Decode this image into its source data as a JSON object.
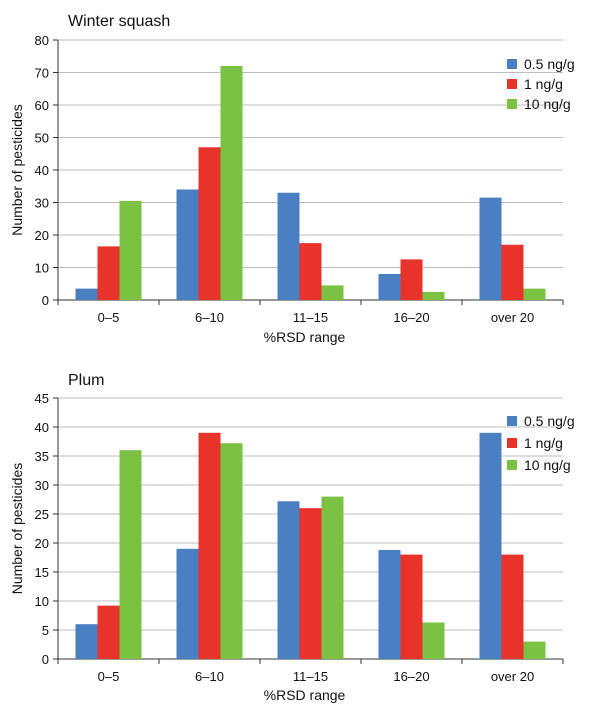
{
  "chart_data": [
    {
      "type": "bar",
      "title": "Winter squash",
      "xlabel": "%RSD range",
      "ylabel": "Number of pesticides",
      "ylim": [
        0,
        80
      ],
      "ytick_step": 10,
      "grid": true,
      "legend": "top-right",
      "categories": [
        "0–5",
        "6–10",
        "11–15",
        "16–20",
        "over 20"
      ],
      "series": [
        {
          "name": "0.5 ng/g",
          "color": "#4a7fc1",
          "values": [
            3.5,
            34,
            33,
            8,
            31.5
          ]
        },
        {
          "name": "1 ng/g",
          "color": "#e8332a",
          "values": [
            16.5,
            47,
            17.5,
            12.5,
            17
          ]
        },
        {
          "name": "10 ng/g",
          "color": "#7cc242",
          "values": [
            30.5,
            72,
            4.5,
            2.5,
            3.5
          ]
        }
      ]
    },
    {
      "type": "bar",
      "title": "Plum",
      "xlabel": "%RSD range",
      "ylabel": "Number of pesticides",
      "ylim": [
        0,
        45
      ],
      "ytick_step": 5,
      "grid": true,
      "legend": "top-right",
      "categories": [
        "0–5",
        "6–10",
        "11–15",
        "16–20",
        "over 20"
      ],
      "series": [
        {
          "name": "0.5 ng/g",
          "color": "#4a7fc1",
          "values": [
            6,
            19,
            27.2,
            18.8,
            39
          ]
        },
        {
          "name": "1 ng/g",
          "color": "#e8332a",
          "values": [
            9.2,
            39,
            26,
            18,
            18
          ]
        },
        {
          "name": "10 ng/g",
          "color": "#7cc242",
          "values": [
            36,
            37.2,
            28,
            6.3,
            3
          ]
        }
      ]
    }
  ]
}
